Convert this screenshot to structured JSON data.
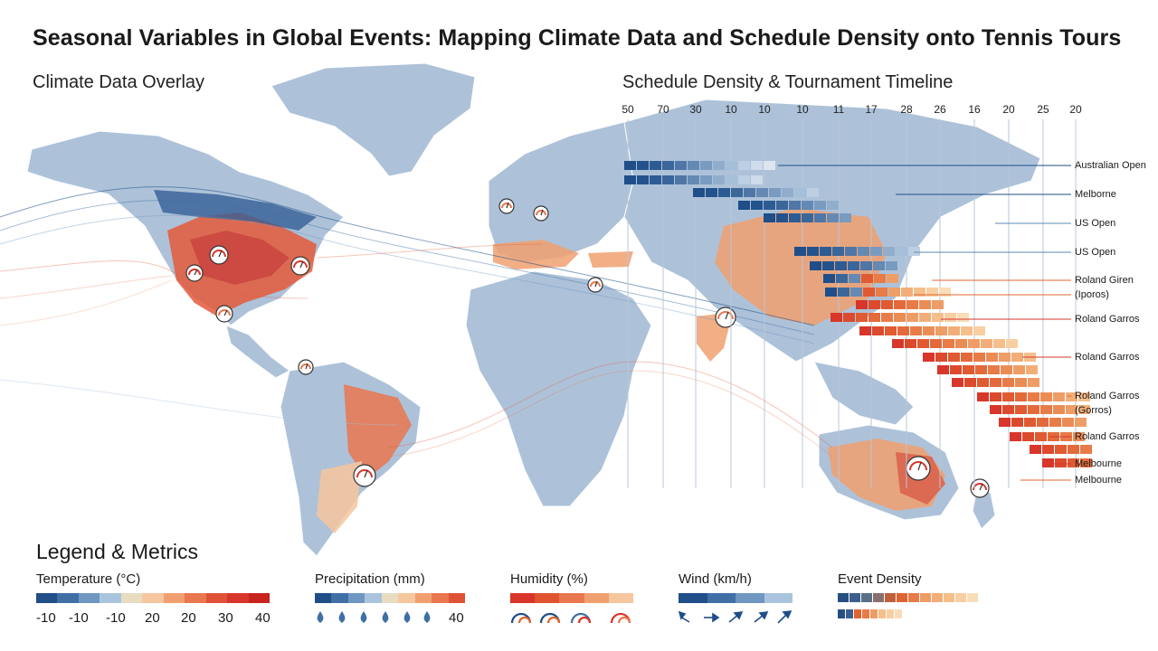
{
  "header": {
    "title": "Seasonal Variables in Global Events: Mapping Climate Data and Schedule Density onto Tennis Tours",
    "climate_section": "Climate Data Overlay",
    "schedule_section": "Schedule Density & Tournament Timeline"
  },
  "colors": {
    "ocean_bg": "#ffffff",
    "land": "#a9bfd6",
    "cold": "#1f4e89",
    "hot": "#d8362a",
    "warm": "#f0a070",
    "density_blue": "#274f82",
    "density_orange": "#e0642f"
  },
  "schedule": {
    "axis_values": [
      "50",
      "70",
      "30",
      "10",
      "10",
      "10",
      "11",
      "17",
      "28",
      "26",
      "16",
      "20",
      "25",
      "20"
    ],
    "tournaments": [
      {
        "label": "Australian Open",
        "color": "#1f4e89"
      },
      {
        "label": "Melborne",
        "color": "#1f4e89"
      },
      {
        "label": "US Open",
        "color": "#5b8ab5"
      },
      {
        "label": "US Open",
        "color": "#5b8ab5"
      },
      {
        "label": "Roland Giren",
        "color": "#e0642f"
      },
      {
        "label": "(Iporos)",
        "color": "#e0642f"
      },
      {
        "label": "Roland Garros",
        "color": "#d8362a"
      },
      {
        "label": "Roland Garros",
        "color": "#d8362a"
      },
      {
        "label": "Roland Garros",
        "color": "#e0642f"
      },
      {
        "label": "(Gorros)",
        "color": "#e0642f"
      },
      {
        "label": "Roland Garros",
        "color": "#d8362a"
      },
      {
        "label": "Melbourne",
        "color": "#d8362a"
      },
      {
        "label": "Melbourne",
        "color": "#e0642f"
      }
    ]
  },
  "legend": {
    "title": "Legend & Metrics",
    "temperature": {
      "label": "Temperature (°C)",
      "ticks": [
        "-10",
        "-10",
        "-10",
        "20",
        "20",
        "30",
        "40"
      ],
      "colors": [
        "#1f4e89",
        "#3f6fa5",
        "#6f97c2",
        "#aac4dd",
        "#e8dcc0",
        "#f6c69e",
        "#f0a070",
        "#e9774f",
        "#df5238",
        "#d8362a",
        "#c9231f"
      ]
    },
    "precipitation": {
      "label": "Precipitation (mm)",
      "tick": "40",
      "colors": [
        "#1f4e89",
        "#3f6fa5",
        "#6f97c2",
        "#aac4dd",
        "#e8dcc0",
        "#f6c69e",
        "#f0a070",
        "#e9774f",
        "#df5238"
      ]
    },
    "humidity": {
      "label": "Humidity (%)",
      "colors": [
        "#d8362a",
        "#e0542f",
        "#e9774f",
        "#f0a070",
        "#f6c69e"
      ]
    },
    "wind": {
      "label": "Wind (km/h)",
      "colors": [
        "#1f4e89",
        "#3f6fa5",
        "#6f97c2",
        "#aac4dd"
      ]
    },
    "density": {
      "label": "Event Density"
    },
    "icons": [
      "droplet-icon",
      "gauge-icon",
      "arrow-icon"
    ]
  }
}
